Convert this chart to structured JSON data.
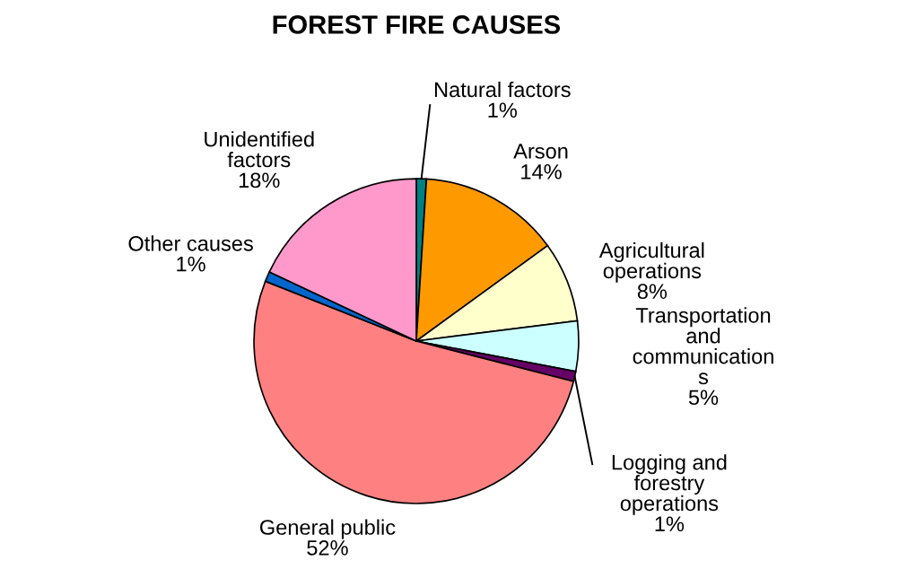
{
  "chart_data": {
    "type": "pie",
    "title": "FOREST FIRE CAUSES",
    "categories": [
      "Natural factors",
      "Arson",
      "Agricultural\noperations",
      "Transportation\nand\ncommunication\ns",
      "Logging and\nforestry\noperations",
      "General public",
      "Other causes",
      "Unidentified\nfactors"
    ],
    "values": [
      1,
      14,
      8,
      5,
      1,
      52,
      1,
      18
    ],
    "value_labels": [
      "1%",
      "14%",
      "8%",
      "5%",
      "1%",
      "52%",
      "1%",
      "18%"
    ],
    "colors": [
      "#008080",
      "#ff9900",
      "#ffffcc",
      "#ccffff",
      "#660066",
      "#ff8080",
      "#0066cc",
      "#ff99cc"
    ],
    "legend": false
  }
}
